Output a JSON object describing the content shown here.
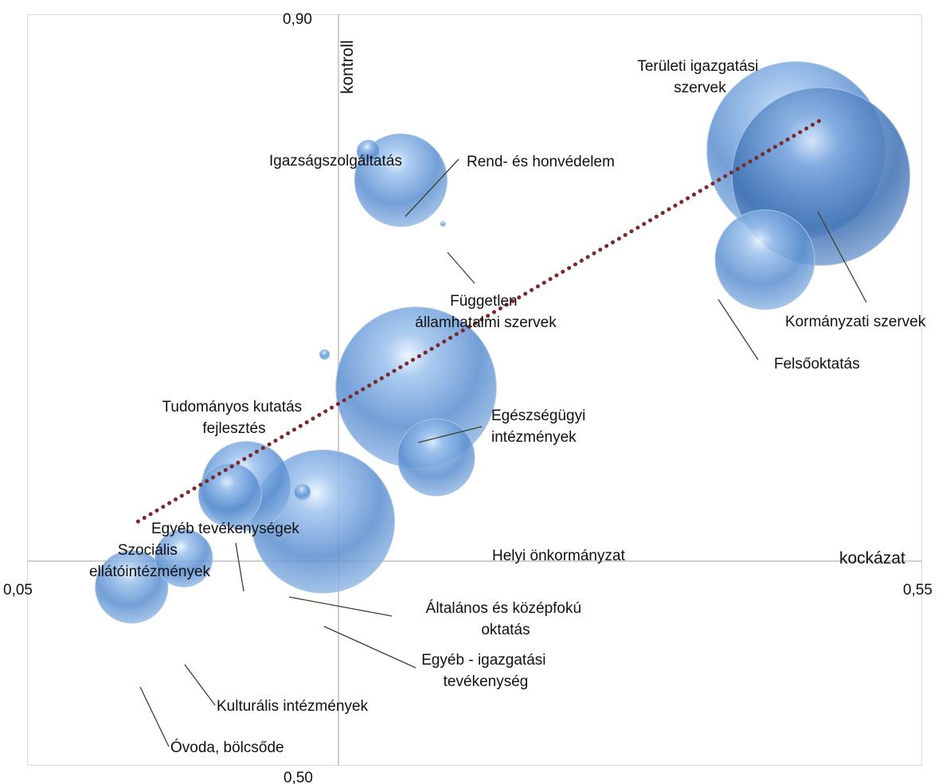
{
  "chart_data": {
    "type": "bubble",
    "title": "",
    "xlabel": "kockázat",
    "ylabel": "kontroll",
    "xlim": [
      0.05,
      0.55
    ],
    "ylim": [
      0.5,
      0.9
    ],
    "x_tick_labels": [
      "0,05",
      "0,55"
    ],
    "y_tick_labels": [
      "0,50",
      "0,90"
    ],
    "axis_crossing": {
      "x": 0.225,
      "y": 0.663
    },
    "grid": false,
    "bubble_color": "#5b8fd0",
    "trendline": {
      "type": "linear",
      "style": "dotted",
      "color": "#7b2a2a",
      "x": [
        0.112,
        0.4935
      ],
      "y": [
        0.63,
        0.8438
      ]
    },
    "points": [
      {
        "label": "Területi igazgatási szervek",
        "x": 0.4795,
        "y": 0.8274,
        "size": 4.8
      },
      {
        "label": "Kormányzati szervek",
        "x": 0.4935,
        "y": 0.8137,
        "size": 4.8
      },
      {
        "label": "Felsőoktatás",
        "x": 0.4622,
        "y": 0.7694,
        "size": 1.5
      },
      {
        "label": "Rend- és honvédelem",
        "x": 0.2588,
        "y": 0.8117,
        "size": 1.3
      },
      {
        "label": "Igazságszolgáltatás",
        "x": 0.2407,
        "y": 0.8269,
        "size": 0.08
      },
      {
        "label": "Független államhatalmi szervek",
        "x": 0.2823,
        "y": 0.7884,
        "size": 0.001
      },
      {
        "label": "Tudományos kutatás fejlesztés",
        "x": 0.2162,
        "y": 0.7189,
        "size": 0.015
      },
      {
        "label": "Egészségügyi intézmények",
        "x": 0.2673,
        "y": 0.7015,
        "size": 3.9
      },
      {
        "label": "Helyi önkormányzat",
        "x": 0.2785,
        "y": 0.6642,
        "size": 0.9
      },
      {
        "label": "Egyéb tevékenységek",
        "x": 0.1725,
        "y": 0.6489,
        "size": 1.2
      },
      {
        "label": "Szociális ellátóintézmények",
        "x": 0.1634,
        "y": 0.6442,
        "size": 0.6
      },
      {
        "label": "Általános és középfokú oktatás",
        "x": 0.2038,
        "y": 0.6456,
        "size": 0.04
      },
      {
        "label": "Egyéb - igazgatási tevékenység",
        "x": 0.2153,
        "y": 0.63,
        "size": 3.1
      },
      {
        "label": "Kulturális intézmények",
        "x": 0.1375,
        "y": 0.6105,
        "size": 0.5
      },
      {
        "label": "Óvoda, bölcsőde",
        "x": 0.1084,
        "y": 0.5952,
        "size": 0.8
      }
    ]
  },
  "labels": {
    "teruleti": [
      "Területi igazgatási",
      "szervek"
    ],
    "kormanyzati": [
      "Kormányzati szervek"
    ],
    "felsooktatas": [
      "Felsőoktatás"
    ],
    "rend": [
      "Rend- és honvédelem"
    ],
    "igazsag": [
      "Igazságszolgáltatás"
    ],
    "fuggetlen": [
      "Független",
      "államhatalmi szervek"
    ],
    "tudomanyos": [
      "Tudományos kutatás",
      "fejlesztés"
    ],
    "egeszseg": [
      "Egészségügyi",
      "intézmények"
    ],
    "helyi": [
      "Helyi önkormányzat"
    ],
    "egyeb_tev": [
      "Egyéb tevékenységek"
    ],
    "szocialis": [
      "Szociális",
      "ellátóintézmények"
    ],
    "altalanos": [
      "Általános és középfokú",
      "oktatás"
    ],
    "egyeb_igazg": [
      "Egyéb - igazgatási",
      "tevékenység"
    ],
    "kulturalis": [
      "Kulturális intézmények"
    ],
    "ovoda": [
      "Óvoda, bölcsőde"
    ]
  }
}
